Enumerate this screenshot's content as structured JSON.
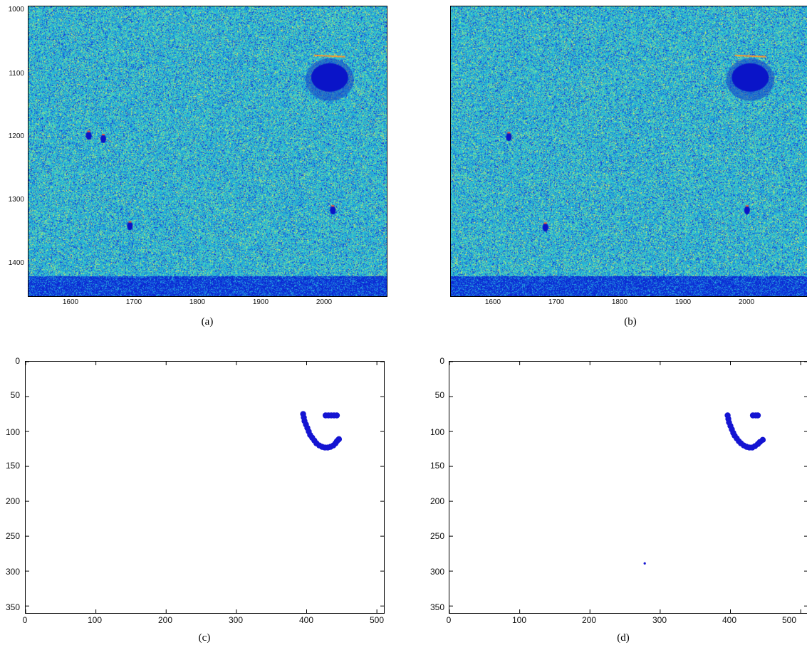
{
  "panels": [
    {
      "id": "a",
      "caption": "(a)",
      "kind": "heatmap",
      "y_ticks": [
        "1000",
        "1100",
        "1200",
        "1300",
        "1400"
      ],
      "x_ticks": [
        "1600",
        "1700",
        "1800",
        "1900",
        "2000"
      ]
    },
    {
      "id": "b",
      "caption": "(b)",
      "kind": "heatmap",
      "y_ticks": [],
      "x_ticks": [
        "1600",
        "1700",
        "1800",
        "1900",
        "2000"
      ]
    },
    {
      "id": "c",
      "caption": "(c)",
      "kind": "scatter",
      "y_ticks": [
        "0",
        "50",
        "100",
        "150",
        "200",
        "250",
        "300",
        "350"
      ],
      "x_ticks": [
        "0",
        "100",
        "200",
        "300",
        "400",
        "500"
      ]
    },
    {
      "id": "d",
      "caption": "(d)",
      "kind": "scatter",
      "y_ticks": [
        "0",
        "50",
        "100",
        "150",
        "200",
        "250",
        "300",
        "350"
      ],
      "x_ticks": [
        "0",
        "100",
        "200",
        "300",
        "400",
        "500"
      ]
    }
  ],
  "colors": {
    "heat_base": "#2bb8d8",
    "heat_low": "#0a1ecf",
    "heat_mid": "#7fe08a",
    "heat_hot": "#ffcc33",
    "points": "#1414d2"
  },
  "chart_data": [
    {
      "type": "heatmap",
      "panel": "a",
      "x_range": [
        1530,
        2095
      ],
      "y_range": [
        995,
        1450
      ],
      "y_inverted": true,
      "features": [
        {
          "label": "dark region",
          "x": 2005,
          "y": 1110
        },
        {
          "label": "dark spot",
          "x": 1625,
          "y": 1198
        },
        {
          "label": "dark spot",
          "x": 1648,
          "y": 1203
        },
        {
          "label": "dark spot",
          "x": 1690,
          "y": 1340
        },
        {
          "label": "dark spot",
          "x": 2010,
          "y": 1315
        }
      ],
      "low_band_y": [
        1418,
        1450
      ]
    },
    {
      "type": "heatmap",
      "panel": "b",
      "x_range": [
        1530,
        2095
      ],
      "y_range": [
        995,
        1450
      ],
      "y_inverted": true,
      "features": [
        {
          "label": "dark region",
          "x": 2005,
          "y": 1110
        },
        {
          "label": "dark spot",
          "x": 1622,
          "y": 1200
        },
        {
          "label": "dark spot",
          "x": 1680,
          "y": 1342
        },
        {
          "label": "dark spot",
          "x": 2000,
          "y": 1315
        }
      ],
      "low_band_y": [
        1418,
        1450
      ]
    },
    {
      "type": "scatter",
      "panel": "c",
      "x_range": [
        0,
        510
      ],
      "y_range": [
        0,
        360
      ],
      "y_inverted": true,
      "series": [
        {
          "x": [
            395,
            396,
            397,
            399,
            401,
            403,
            405,
            408,
            411,
            414,
            418,
            422,
            426,
            430,
            434,
            438,
            441,
            443,
            445,
            446,
            427,
            431,
            435,
            439,
            443
          ],
          "y": [
            75,
            80,
            85,
            90,
            95,
            100,
            105,
            109,
            113,
            117,
            120,
            122,
            123,
            123,
            122,
            120,
            117,
            114,
            112,
            111,
            77,
            77,
            77,
            77,
            77
          ]
        }
      ]
    },
    {
      "type": "scatter",
      "panel": "d",
      "x_range": [
        0,
        510
      ],
      "y_range": [
        0,
        360
      ],
      "y_inverted": true,
      "series": [
        {
          "x": [
            396,
            397,
            398,
            400,
            402,
            404,
            406,
            409,
            412,
            415,
            419,
            423,
            427,
            431,
            435,
            439,
            442,
            446,
            432,
            436,
            439,
            278
          ],
          "y": [
            77,
            82,
            87,
            92,
            97,
            102,
            106,
            110,
            114,
            117,
            120,
            122,
            123,
            123,
            121,
            118,
            115,
            112,
            77,
            77,
            77,
            289
          ]
        }
      ]
    }
  ]
}
